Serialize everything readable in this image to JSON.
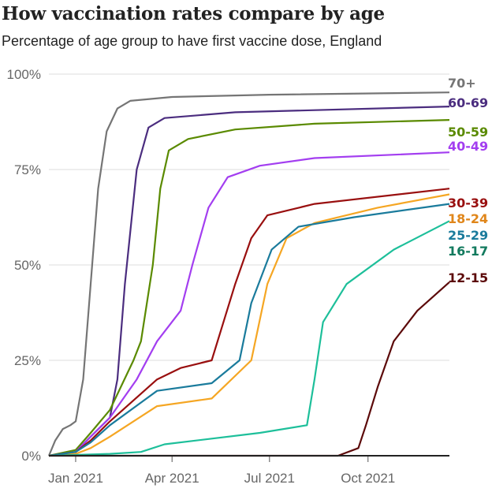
{
  "chart_data": {
    "type": "line",
    "title": "How vaccination rates compare by age",
    "subtitle": "Percentage of age group to have first vaccine dose, England",
    "xlabel": "",
    "ylabel": "",
    "xlim": [
      "2020-12-07",
      "2021-12-16"
    ],
    "ylim": [
      0,
      100
    ],
    "x_ticks": [
      {
        "date": "2021-01-01",
        "label": "Jan 2021"
      },
      {
        "date": "2021-04-01",
        "label": "Apr 2021"
      },
      {
        "date": "2021-07-01",
        "label": "Jul 2021"
      },
      {
        "date": "2021-10-01",
        "label": "Oct 2021"
      }
    ],
    "y_ticks": [
      {
        "value": 0,
        "label": "0%"
      },
      {
        "value": 25,
        "label": "25%"
      },
      {
        "value": 50,
        "label": "50%"
      },
      {
        "value": 75,
        "label": "75%"
      },
      {
        "value": 100,
        "label": "100%"
      }
    ],
    "grid": "horizontal",
    "legend": "direct labels at right end of lines",
    "series": [
      {
        "name": "70+",
        "color": "#757575",
        "label_color": "#757575",
        "points": [
          [
            "2020-12-07",
            0
          ],
          [
            "2020-12-13",
            4
          ],
          [
            "2020-12-20",
            7
          ],
          [
            "2020-12-27",
            8
          ],
          [
            "2021-01-01",
            9
          ],
          [
            "2021-01-08",
            20
          ],
          [
            "2021-01-15",
            45
          ],
          [
            "2021-01-22",
            70
          ],
          [
            "2021-01-30",
            85
          ],
          [
            "2021-02-09",
            91
          ],
          [
            "2021-02-21",
            93
          ],
          [
            "2021-04-01",
            94
          ],
          [
            "2021-07-01",
            94.6
          ],
          [
            "2021-12-16",
            95.2
          ]
        ]
      },
      {
        "name": "60-69",
        "color": "#4b2d7f",
        "label_color": "#4b2d7f",
        "points": [
          [
            "2020-12-07",
            0
          ],
          [
            "2021-01-01",
            1
          ],
          [
            "2021-01-15",
            5
          ],
          [
            "2021-02-02",
            10
          ],
          [
            "2021-02-09",
            20
          ],
          [
            "2021-02-16",
            45
          ],
          [
            "2021-02-27",
            75
          ],
          [
            "2021-03-10",
            86
          ],
          [
            "2021-03-25",
            88.5
          ],
          [
            "2021-05-30",
            90
          ],
          [
            "2021-12-16",
            91.5
          ]
        ]
      },
      {
        "name": "50-59",
        "color": "#5a8a00",
        "label_color": "#5a8a00",
        "points": [
          [
            "2020-12-07",
            0
          ],
          [
            "2021-01-01",
            1.5
          ],
          [
            "2021-01-15",
            6
          ],
          [
            "2021-02-02",
            12
          ],
          [
            "2021-02-24",
            25
          ],
          [
            "2021-03-03",
            30
          ],
          [
            "2021-03-14",
            50
          ],
          [
            "2021-03-21",
            70
          ],
          [
            "2021-03-29",
            80
          ],
          [
            "2021-04-16",
            83
          ],
          [
            "2021-05-30",
            85.5
          ],
          [
            "2021-08-12",
            87
          ],
          [
            "2021-12-16",
            88
          ]
        ]
      },
      {
        "name": "40-49",
        "color": "#a33ef0",
        "label_color": "#a33ef0",
        "points": [
          [
            "2020-12-07",
            0
          ],
          [
            "2021-01-01",
            1
          ],
          [
            "2021-01-15",
            5
          ],
          [
            "2021-02-02",
            10
          ],
          [
            "2021-02-27",
            20
          ],
          [
            "2021-03-18",
            30
          ],
          [
            "2021-04-09",
            38
          ],
          [
            "2021-04-20",
            50
          ],
          [
            "2021-05-05",
            65
          ],
          [
            "2021-05-23",
            73
          ],
          [
            "2021-06-22",
            76
          ],
          [
            "2021-08-12",
            78
          ],
          [
            "2021-12-16",
            79.5
          ]
        ]
      },
      {
        "name": "30-39",
        "color": "#990f0f",
        "label_color": "#990f0f",
        "points": [
          [
            "2020-12-07",
            0
          ],
          [
            "2021-01-01",
            1
          ],
          [
            "2021-01-15",
            4
          ],
          [
            "2021-02-02",
            9
          ],
          [
            "2021-03-18",
            20
          ],
          [
            "2021-04-09",
            23
          ],
          [
            "2021-05-08",
            25
          ],
          [
            "2021-05-19",
            35
          ],
          [
            "2021-05-30",
            45
          ],
          [
            "2021-06-14",
            57
          ],
          [
            "2021-06-29",
            63
          ],
          [
            "2021-08-12",
            66
          ],
          [
            "2021-12-16",
            70
          ]
        ]
      },
      {
        "name": "18-24",
        "color": "#f5a623",
        "label_color": "#e0861a",
        "points": [
          [
            "2020-12-07",
            0
          ],
          [
            "2021-01-01",
            0.5
          ],
          [
            "2021-01-15",
            2
          ],
          [
            "2021-02-02",
            5
          ],
          [
            "2021-03-18",
            13
          ],
          [
            "2021-05-08",
            15
          ],
          [
            "2021-06-14",
            25
          ],
          [
            "2021-06-29",
            45
          ],
          [
            "2021-07-17",
            57
          ],
          [
            "2021-08-12",
            61
          ],
          [
            "2021-10-10",
            65
          ],
          [
            "2021-12-16",
            68.5
          ]
        ]
      },
      {
        "name": "25-29",
        "color": "#1a7b9c",
        "label_color": "#1a7b9c",
        "points": [
          [
            "2020-12-07",
            0
          ],
          [
            "2021-01-01",
            1
          ],
          [
            "2021-01-15",
            3.5
          ],
          [
            "2021-02-02",
            8
          ],
          [
            "2021-03-18",
            17
          ],
          [
            "2021-05-08",
            19
          ],
          [
            "2021-06-03",
            25
          ],
          [
            "2021-06-14",
            40
          ],
          [
            "2021-07-03",
            54
          ],
          [
            "2021-07-28",
            60
          ],
          [
            "2021-09-18",
            62.5
          ],
          [
            "2021-12-16",
            66
          ]
        ]
      },
      {
        "name": "16-17",
        "color": "#1dbf9a",
        "label_color": "#127a5e",
        "points": [
          [
            "2020-12-07",
            0
          ],
          [
            "2021-02-02",
            0.5
          ],
          [
            "2021-03-03",
            1
          ],
          [
            "2021-03-25",
            3
          ],
          [
            "2021-06-22",
            6
          ],
          [
            "2021-08-05",
            8
          ],
          [
            "2021-08-12",
            20
          ],
          [
            "2021-08-20",
            35
          ],
          [
            "2021-09-11",
            45
          ],
          [
            "2021-10-25",
            54
          ],
          [
            "2021-12-16",
            61.5
          ]
        ]
      },
      {
        "name": "12-15",
        "color": "#5c0a0a",
        "label_color": "#5c0a0a",
        "points": [
          [
            "2020-12-07",
            0
          ],
          [
            "2021-09-03",
            0
          ],
          [
            "2021-09-22",
            2
          ],
          [
            "2021-09-29",
            8
          ],
          [
            "2021-10-10",
            18
          ],
          [
            "2021-10-25",
            30
          ],
          [
            "2021-11-16",
            38
          ],
          [
            "2021-12-16",
            45.5
          ]
        ]
      }
    ]
  }
}
